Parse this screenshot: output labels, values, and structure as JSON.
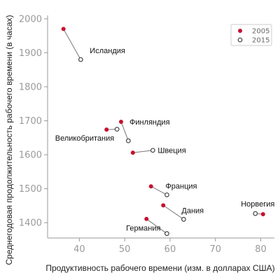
{
  "chart_data": {
    "type": "scatter",
    "title": "",
    "xlabel": "Продуктивность рабочего времени (изм. в долларах США)",
    "ylabel": "Среднегодовая продолжительность рабочего времени (в часах)",
    "xlim": [
      33,
      83
    ],
    "ylim": [
      1355,
      2010
    ],
    "x_ticks": [
      40,
      50,
      60,
      70,
      80
    ],
    "y_ticks": [
      1400,
      1500,
      1600,
      1700,
      1800,
      1900,
      2000
    ],
    "grid": false,
    "legend_position": "top-right",
    "colors": {
      "2005": "#c8102e",
      "2015": "#444444",
      "connector": "#777777"
    },
    "series": [
      {
        "name": "2005",
        "marker": "filled-circle"
      },
      {
        "name": "2015",
        "marker": "open-circle"
      }
    ],
    "countries": [
      {
        "name": "Исландия",
        "x2005": 36.5,
        "y2005": 1970,
        "x2015": 40.3,
        "y2015": 1880
      },
      {
        "name": "Финляндия",
        "x2005": 49.2,
        "y2005": 1697,
        "x2015": 50.8,
        "y2015": 1641
      },
      {
        "name": "Великобритания",
        "x2005": 46.0,
        "y2005": 1674,
        "x2015": 48.3,
        "y2015": 1675
      },
      {
        "name": "Швеция",
        "x2005": 51.8,
        "y2005": 1606,
        "x2015": 56.2,
        "y2015": 1613
      },
      {
        "name": "Франция",
        "x2005": 55.8,
        "y2005": 1507,
        "x2015": 59.3,
        "y2015": 1482
      },
      {
        "name": "Норвегия",
        "x2005": 80.5,
        "y2005": 1425,
        "x2015": 78.8,
        "y2015": 1427
      },
      {
        "name": "Дания",
        "x2005": 58.5,
        "y2005": 1451,
        "x2015": 63.0,
        "y2015": 1410
      },
      {
        "name": "Германия",
        "x2005": 54.8,
        "y2005": 1411,
        "x2015": 59.3,
        "y2015": 1368
      }
    ]
  }
}
